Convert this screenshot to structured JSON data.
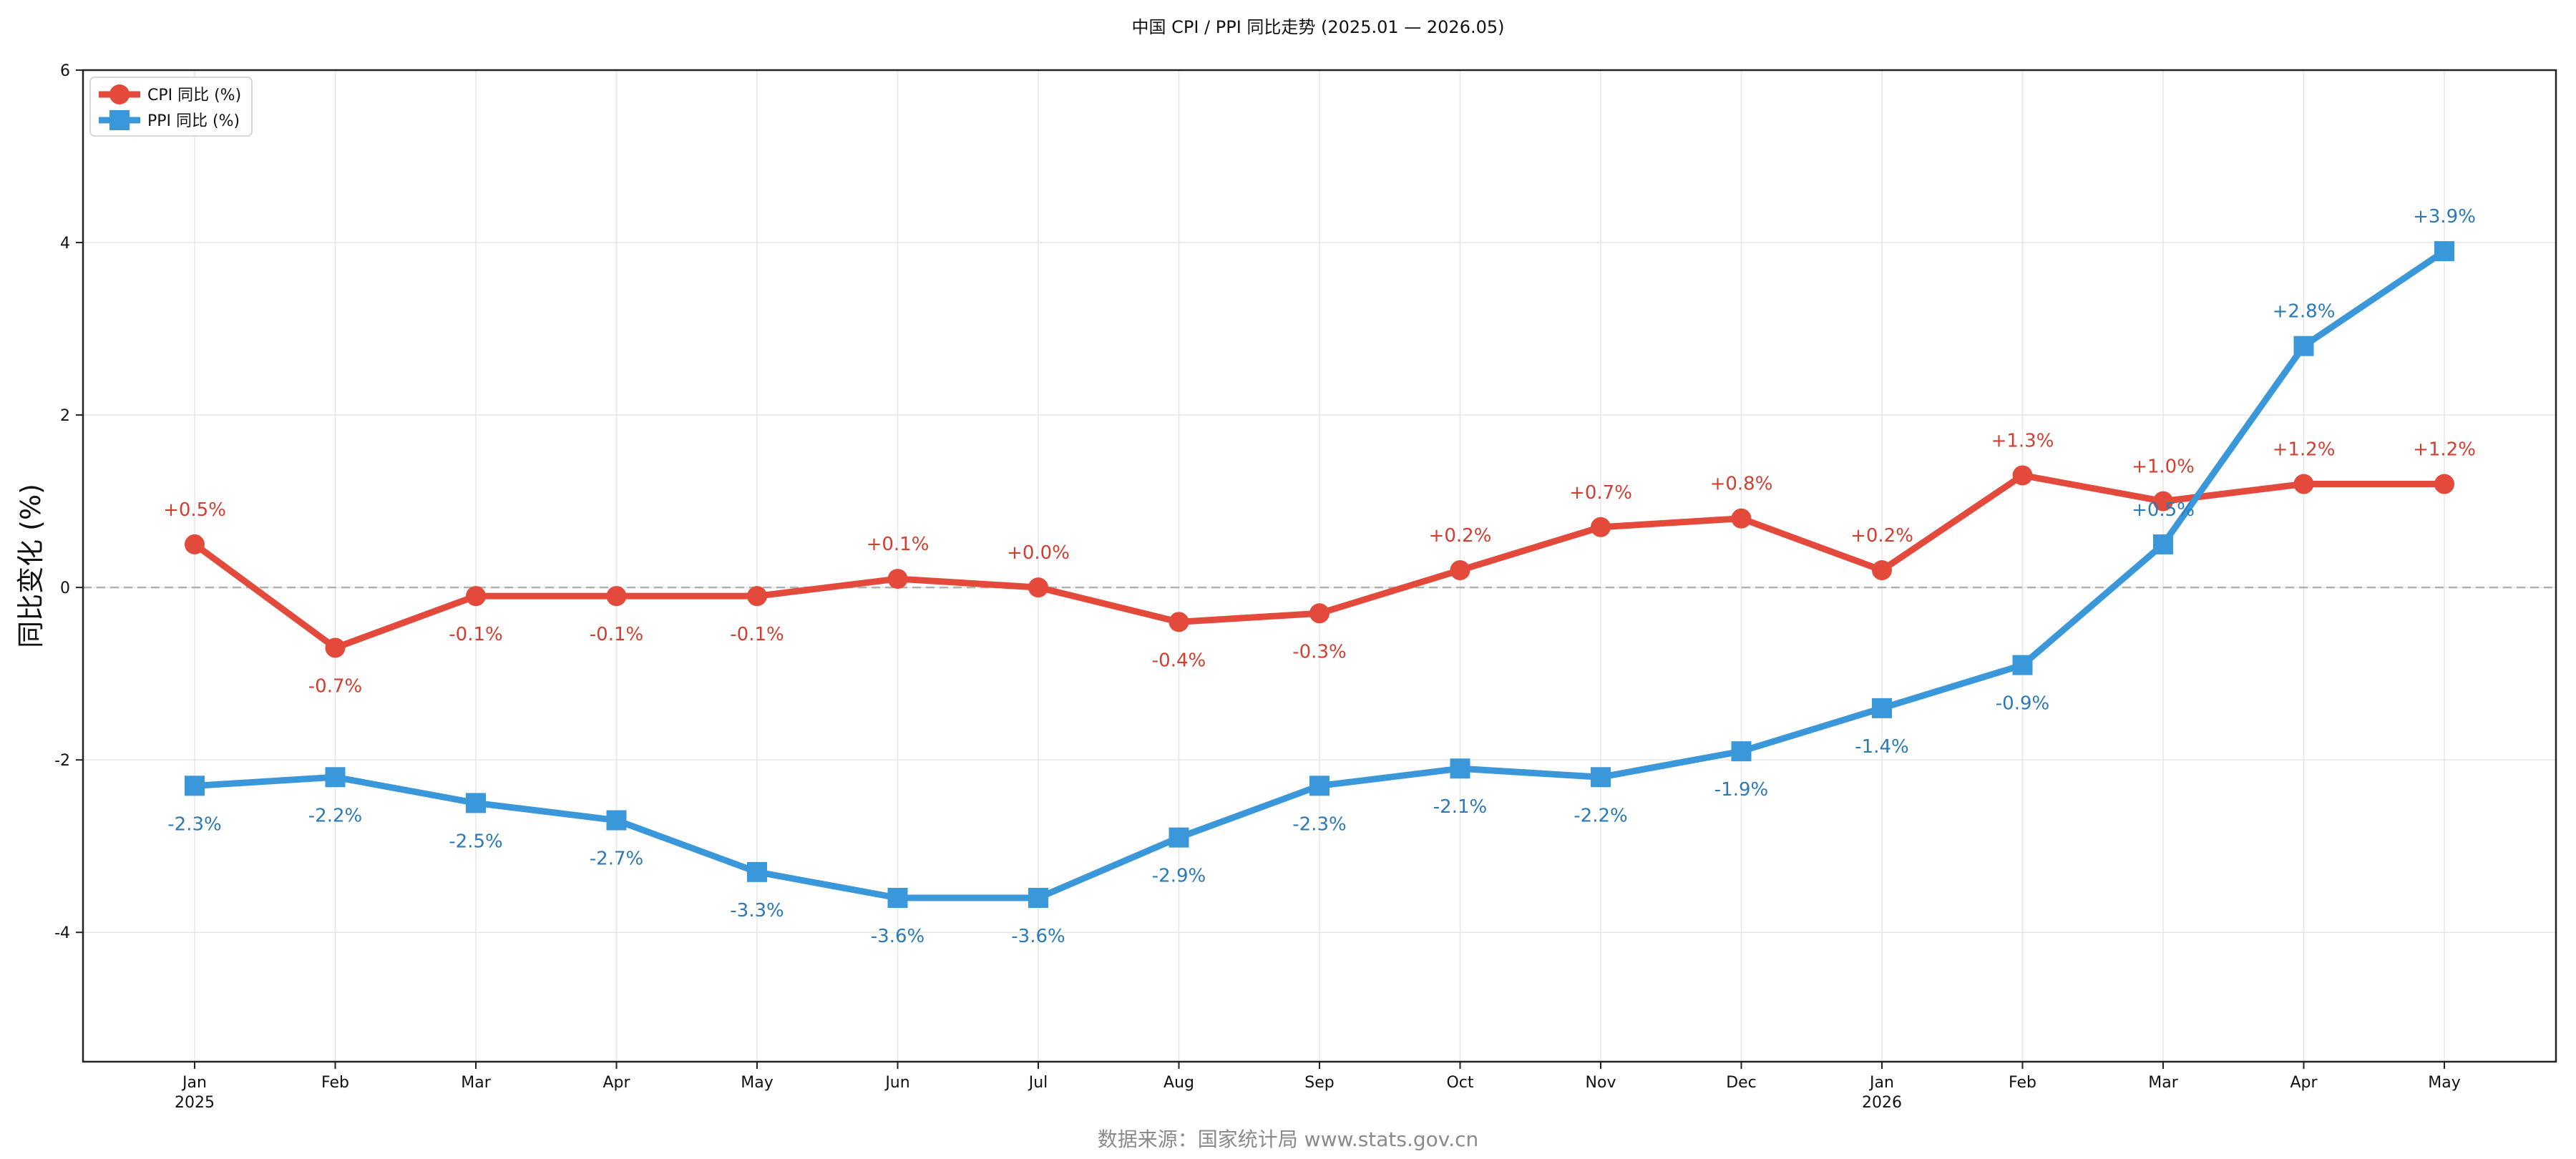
{
  "chart_data": {
    "type": "line",
    "title": "中国 CPI / PPI 同比走势 (2025.01 — 2026.05)",
    "xlabel": "",
    "ylabel": "同比变化 (%)",
    "ylim": [
      -5.5,
      6
    ],
    "yticks": [
      -4,
      -2,
      0,
      2,
      4,
      6
    ],
    "grid": true,
    "reference_line": 0,
    "legend_position": "top-left",
    "categories": [
      "Jan\n2025",
      "Feb",
      "Mar",
      "Apr",
      "May",
      "Jun",
      "Jul",
      "Aug",
      "Sep",
      "Oct",
      "Nov",
      "Dec",
      "Jan\n2026",
      "Feb",
      "Mar",
      "Apr",
      "May"
    ],
    "series": [
      {
        "name": "CPI 同比 (%)",
        "color": "#e34a3b",
        "marker": "circle",
        "values": [
          0.5,
          -0.7,
          -0.1,
          -0.1,
          -0.1,
          0.1,
          0.0,
          -0.4,
          -0.3,
          0.2,
          0.7,
          0.8,
          0.2,
          1.3,
          1.0,
          1.2,
          1.2
        ],
        "labels": [
          "+0.5%",
          "-0.7%",
          "-0.1%",
          "-0.1%",
          "-0.1%",
          "+0.1%",
          "+0.0%",
          "-0.4%",
          "-0.3%",
          "+0.2%",
          "+0.7%",
          "+0.8%",
          "+0.2%",
          "+1.3%",
          "+1.0%",
          "+1.2%",
          "+1.2%"
        ]
      },
      {
        "name": "PPI 同比 (%)",
        "color": "#3a97d9",
        "marker": "square",
        "values": [
          -2.3,
          -2.2,
          -2.5,
          -2.7,
          -3.3,
          -3.6,
          -3.6,
          -2.9,
          -2.3,
          -2.1,
          -2.2,
          -1.9,
          -1.4,
          -0.9,
          0.5,
          2.8,
          3.9
        ],
        "labels": [
          "-2.3%",
          "-2.2%",
          "-2.5%",
          "-2.7%",
          "-3.3%",
          "-3.6%",
          "-3.6%",
          "-2.9%",
          "-2.3%",
          "-2.1%",
          "-2.2%",
          "-1.9%",
          "-1.4%",
          "-0.9%",
          "+0.5%",
          "+2.8%",
          "+3.9%"
        ]
      }
    ],
    "source": "数据来源：国家统计局 www.stats.gov.cn"
  }
}
